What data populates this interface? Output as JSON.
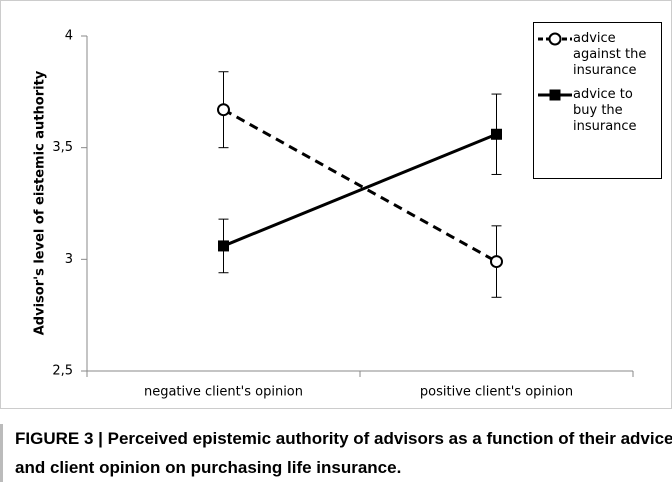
{
  "chart_data": {
    "type": "line",
    "y_label": "Advisor's level of eistemic authority",
    "categories": [
      "negative client's opinion",
      "positive client's opinion"
    ],
    "series": [
      {
        "name": "advice against the insurance",
        "color": "#000000",
        "dashed": true,
        "marker": "open-circle",
        "values": [
          3.67,
          2.99
        ],
        "errors": [
          0.17,
          0.16
        ]
      },
      {
        "name": "advice to buy the insurance",
        "color": "#000000",
        "dashed": false,
        "marker": "filled-square",
        "values": [
          3.06,
          3.56
        ],
        "errors": [
          0.12,
          0.18
        ]
      }
    ],
    "ylim": [
      2.5,
      4
    ],
    "yticks": [
      {
        "value": 2.5,
        "label": "2,5"
      },
      3,
      {
        "value": 3.5,
        "label": "3,5"
      },
      4
    ],
    "caption": "FIGURE 3 | Perceived epistemic authority of advisors as a function of their advice and client opinion on purchasing life insurance."
  }
}
